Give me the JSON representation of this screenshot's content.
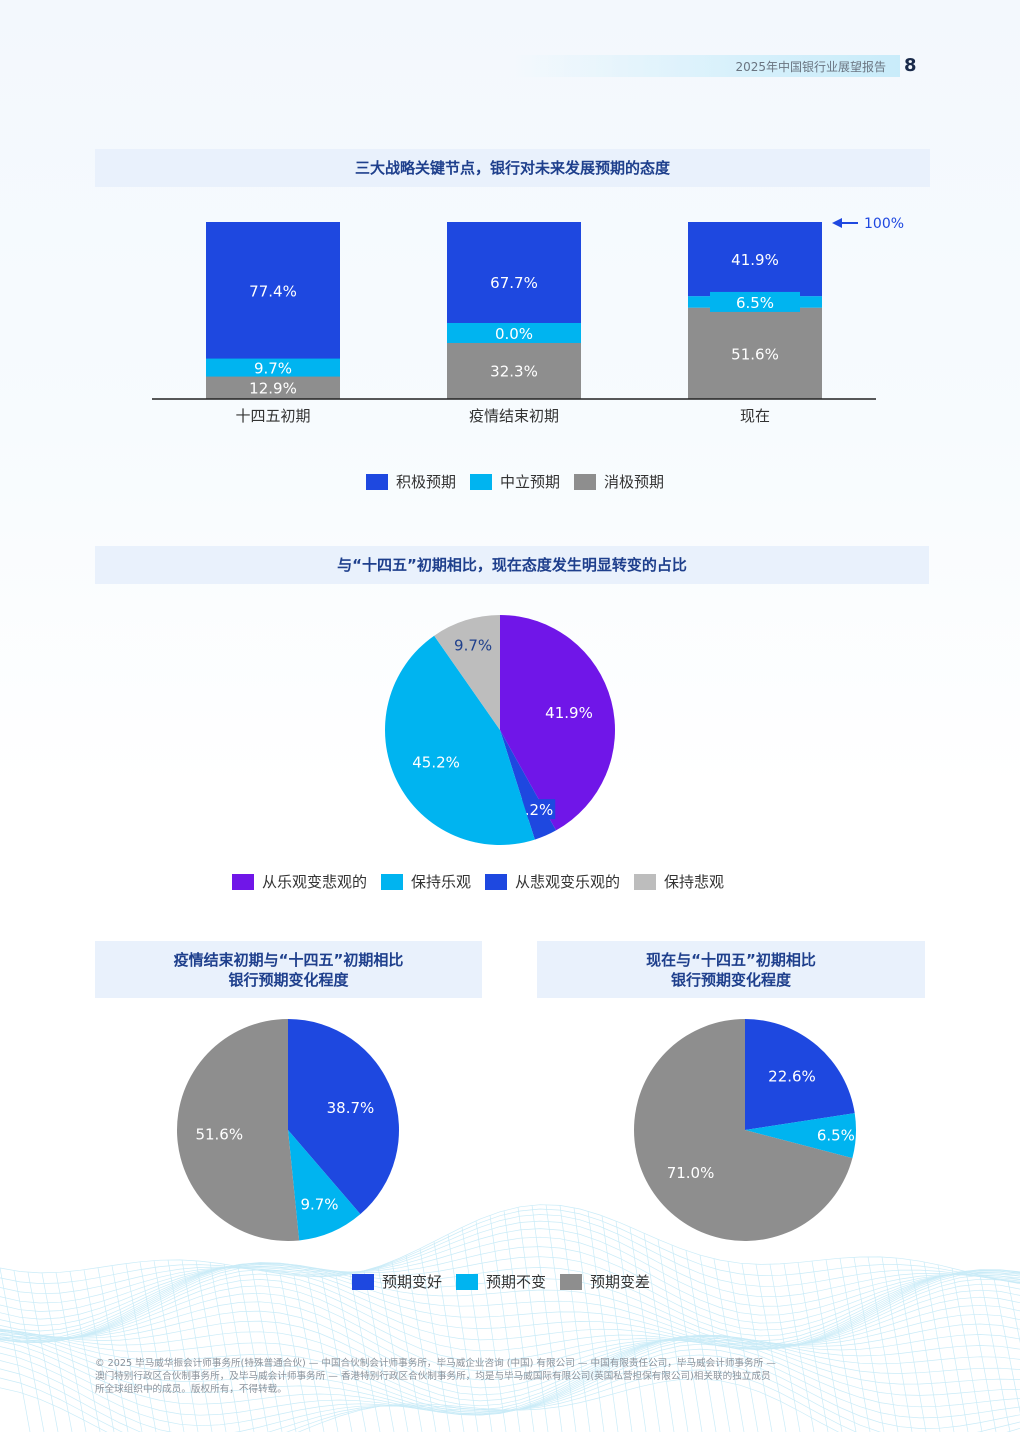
{
  "header": {
    "report_title": "2025年中国银行业展望报告",
    "page_number": "8"
  },
  "colors": {
    "positive": "#1e48e0",
    "neutral": "#00b4f0",
    "negative": "#8e8e8e",
    "purple": "#7016e8",
    "light_gray": "#bdbdbd",
    "title_text": "#1e3f8c",
    "title_bg": "#e9f1fc"
  },
  "section1": {
    "title": "三大战略关键节点，银行对未来发展预期的态度",
    "arrow_label": "100%",
    "legend": [
      "积极预期",
      "中立预期",
      "消极预期"
    ]
  },
  "section2": {
    "title": "与“十四五”初期相比，现在态度发生明显转变的占比",
    "legend": [
      "从乐观变悲观的",
      "保持乐观",
      "从悲观变乐观的",
      "保持悲观"
    ]
  },
  "section3": {
    "left_title_line1": "疫情结束初期与“十四五”初期相比",
    "left_title_line2": "银行预期变化程度",
    "right_title_line1": "现在与“十四五”初期相比",
    "right_title_line2": "银行预期变化程度",
    "legend": [
      "预期变好",
      "预期不变",
      "预期变差"
    ]
  },
  "footer": {
    "line1": "© 2025 毕马威华振会计师事务所(特殊普通合伙) — 中国合伙制会计师事务所，毕马威企业咨询 (中国) 有限公司 — 中国有限责任公司，毕马威会计师事务所 —",
    "line2": "澳门特别行政区合伙制事务所，及毕马威会计师事务所 — 香港特别行政区合伙制事务所，均是与毕马威国际有限公司(英国私营担保有限公司)相关联的独立成员",
    "line3": "所全球组织中的成员。版权所有，不得转载。"
  },
  "chart_data": [
    {
      "type": "bar",
      "stacked": true,
      "title": "三大战略关键节点，银行对未来发展预期的态度",
      "categories": [
        "十四五初期",
        "疫情结束初期",
        "现在"
      ],
      "series": [
        {
          "name": "消极预期",
          "color": "#8e8e8e",
          "values": [
            12.9,
            32.3,
            51.6
          ],
          "labels": [
            "12.9%",
            "32.3%",
            "51.6%"
          ]
        },
        {
          "name": "中立预期",
          "color": "#00b4f0",
          "values": [
            9.7,
            0.0,
            6.5
          ],
          "labels": [
            "9.7%",
            "0.0%",
            "6.5%"
          ]
        },
        {
          "name": "积极预期",
          "color": "#1e48e0",
          "values": [
            77.4,
            67.7,
            41.9
          ],
          "labels": [
            "77.4%",
            "67.7%",
            "41.9%"
          ]
        }
      ],
      "ylim": [
        0,
        100
      ],
      "legend": "bottom"
    },
    {
      "type": "pie",
      "title": "与“十四五”初期相比，现在态度发生明显转变的占比",
      "slices": [
        {
          "name": "从乐观变悲观的",
          "value": 41.9,
          "label": "41.9%",
          "color": "#7016e8"
        },
        {
          "name": "从悲观变乐观的",
          "value": 3.2,
          "label": "3.2%",
          "color": "#1e48e0"
        },
        {
          "name": "保持乐观",
          "value": 45.2,
          "label": "45.2%",
          "color": "#00b4f0"
        },
        {
          "name": "保持悲观",
          "value": 9.7,
          "label": "9.7%",
          "color": "#bdbdbd"
        }
      ],
      "legend": "bottom"
    },
    {
      "type": "pie",
      "title": "疫情结束初期与“十四五”初期相比 银行预期变化程度",
      "slices": [
        {
          "name": "预期变好",
          "value": 38.7,
          "label": "38.7%",
          "color": "#1e48e0"
        },
        {
          "name": "预期不变",
          "value": 9.7,
          "label": "9.7%",
          "color": "#00b4f0"
        },
        {
          "name": "预期变差",
          "value": 51.6,
          "label": "51.6%",
          "color": "#8e8e8e"
        }
      ],
      "legend": "bottom"
    },
    {
      "type": "pie",
      "title": "现在与“十四五”初期相比 银行预期变化程度",
      "slices": [
        {
          "name": "预期变好",
          "value": 22.6,
          "label": "22.6%",
          "color": "#1e48e0"
        },
        {
          "name": "预期不变",
          "value": 6.5,
          "label": "6.5%",
          "color": "#00b4f0"
        },
        {
          "name": "预期变差",
          "value": 71.0,
          "label": "71.0%",
          "color": "#8e8e8e"
        }
      ],
      "legend": "bottom"
    }
  ]
}
